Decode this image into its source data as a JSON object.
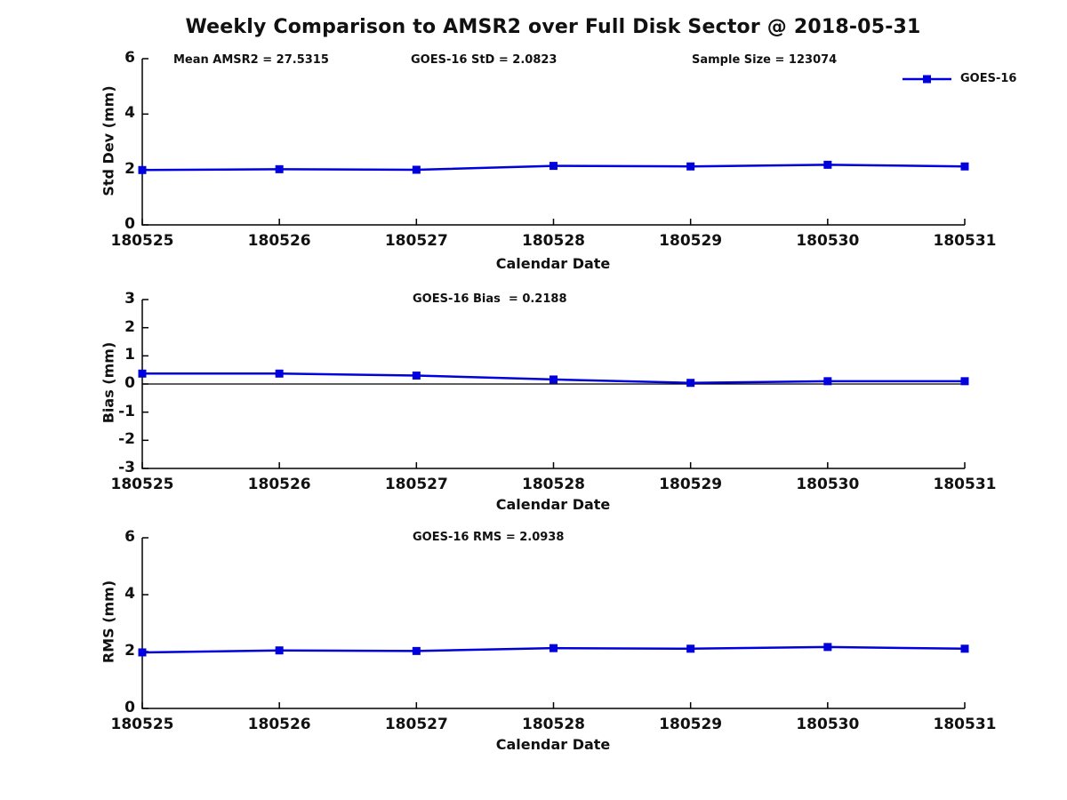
{
  "figure": {
    "title": "Weekly Comparison to AMSR2 over Full Disk Sector @ 2018-05-31",
    "background": "#ffffff",
    "line_color": "#0000dd",
    "axis_color": "#000000"
  },
  "legend": {
    "label": "GOES-16",
    "position": "top-right"
  },
  "chart_data": [
    {
      "type": "line",
      "annotations": [
        "Mean AMSR2 = 27.5315",
        "GOES-16 StD = 2.0823",
        "Sample Size = 123074"
      ],
      "categories": [
        "180525",
        "180526",
        "180527",
        "180528",
        "180529",
        "180530",
        "180531"
      ],
      "series": [
        {
          "name": "GOES-16",
          "color": "#0000dd",
          "marker": "square",
          "values": [
            1.98,
            2.01,
            1.99,
            2.13,
            2.11,
            2.17,
            2.11
          ]
        }
      ],
      "xlabel": "Calendar Date",
      "ylabel": "Std Dev (mm)",
      "ylim": [
        0,
        6
      ],
      "yticks": [
        0,
        2,
        4,
        6
      ],
      "grid": false,
      "zero_line": false,
      "legend_position": "top-right"
    },
    {
      "type": "line",
      "annotations": [
        "GOES-16 Bias  = 0.2188"
      ],
      "categories": [
        "180525",
        "180526",
        "180527",
        "180528",
        "180529",
        "180530",
        "180531"
      ],
      "series": [
        {
          "name": "GOES-16",
          "color": "#0000dd",
          "marker": "square",
          "values": [
            0.37,
            0.37,
            0.3,
            0.16,
            0.04,
            0.1,
            0.1
          ]
        }
      ],
      "xlabel": "Calendar Date",
      "ylabel": "Bias (mm)",
      "ylim": [
        -3,
        3
      ],
      "yticks": [
        -3,
        -2,
        -1,
        0,
        1,
        2,
        3
      ],
      "grid": false,
      "zero_line": true,
      "legend_position": "none"
    },
    {
      "type": "line",
      "annotations": [
        "GOES-16 RMS = 2.0938"
      ],
      "categories": [
        "180525",
        "180526",
        "180527",
        "180528",
        "180529",
        "180530",
        "180531"
      ],
      "series": [
        {
          "name": "GOES-16",
          "color": "#0000dd",
          "marker": "square",
          "values": [
            1.97,
            2.04,
            2.02,
            2.12,
            2.1,
            2.16,
            2.1
          ]
        }
      ],
      "xlabel": "Calendar Date",
      "ylabel": "RMS (mm)",
      "ylim": [
        0,
        6
      ],
      "yticks": [
        0,
        2,
        4,
        6
      ],
      "grid": false,
      "zero_line": false,
      "legend_position": "none"
    }
  ]
}
